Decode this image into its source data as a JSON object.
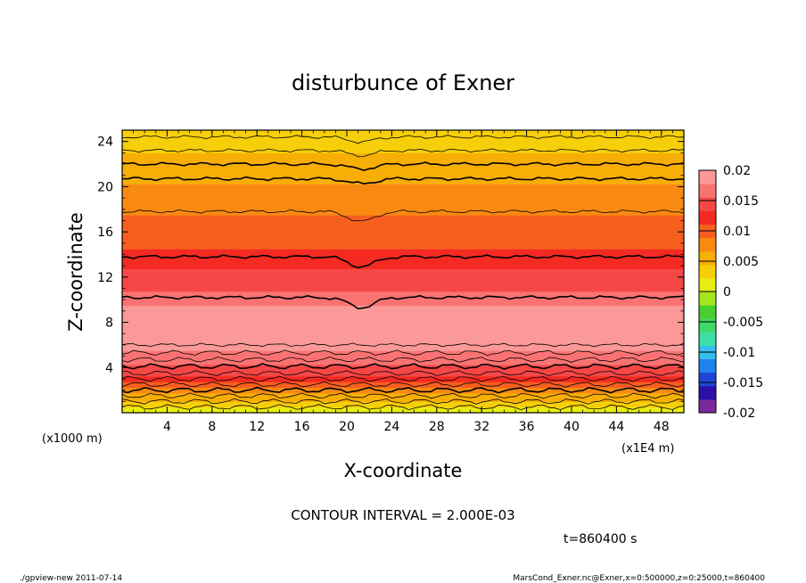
{
  "chart_data": {
    "type": "heatmap",
    "title": "disturbunce of Exner",
    "xlabel": "X-coordinate",
    "ylabel": "Z-coordinate",
    "x_unit_label": "(x1E4 m)",
    "y_unit_label": "(x1000 m)",
    "xlim": [
      0,
      50
    ],
    "ylim": [
      0,
      25
    ],
    "x_ticks": [
      "4",
      "8",
      "12",
      "16",
      "20",
      "24",
      "28",
      "32",
      "36",
      "40",
      "44",
      "48"
    ],
    "y_ticks": [
      "4",
      "8",
      "12",
      "16",
      "20",
      "24"
    ],
    "x_tick_values": [
      4,
      8,
      12,
      16,
      20,
      24,
      28,
      32,
      36,
      40,
      44,
      48
    ],
    "y_tick_values": [
      4,
      8,
      12,
      16,
      20,
      24
    ],
    "colorbar": {
      "labels": [
        "0.02",
        "0.015",
        "0.01",
        "0.005",
        "0",
        "-0.005",
        "-0.01",
        "-0.015",
        "-0.02"
      ],
      "values": [
        0.02,
        0.015,
        0.01,
        0.005,
        0,
        -0.005,
        -0.01,
        -0.015,
        -0.02
      ],
      "colors": [
        "#7a2a9a",
        "#2a0fa8",
        "#1f45d8",
        "#1f82ee",
        "#35bfef",
        "#3ee0a8",
        "#43d86a",
        "#47cf2d",
        "#a6e61e",
        "#e9ee12",
        "#f6cf0a",
        "#f7ae05",
        "#f88a12",
        "#f75f20",
        "#f42a23",
        "#f64747",
        "#fa7373",
        "#fb9898"
      ]
    },
    "vertical_profile": {
      "z": [
        0.5,
        1.5,
        2.5,
        3.5,
        4.5,
        5.5,
        6.5,
        7.5,
        8.5,
        9.5,
        10.5,
        11.5,
        12.5,
        13.5,
        14.5,
        15.5,
        16.5,
        17.5,
        18.5,
        19.5,
        20.5,
        21.5,
        22.5,
        23.5,
        24.5
      ],
      "value": [
        0.002,
        0.006,
        0.01,
        0.014,
        0.016,
        0.018,
        0.0185,
        0.0195,
        0.019,
        0.018,
        0.016,
        0.0145,
        0.0135,
        0.0125,
        0.011,
        0.0105,
        0.0095,
        0.009,
        0.008,
        0.007,
        0.0065,
        0.0055,
        0.005,
        0.004,
        0.003
      ]
    },
    "contour_interval_label": "CONTOUR INTERVAL = 2.000E-03",
    "time_label": "t=860400 s"
  },
  "footer": {
    "left": "./gpview-new  2011-07-14",
    "right": "MarsCond_Exner.nc@Exner,x=0:500000,z=0:25000,t=860400"
  }
}
